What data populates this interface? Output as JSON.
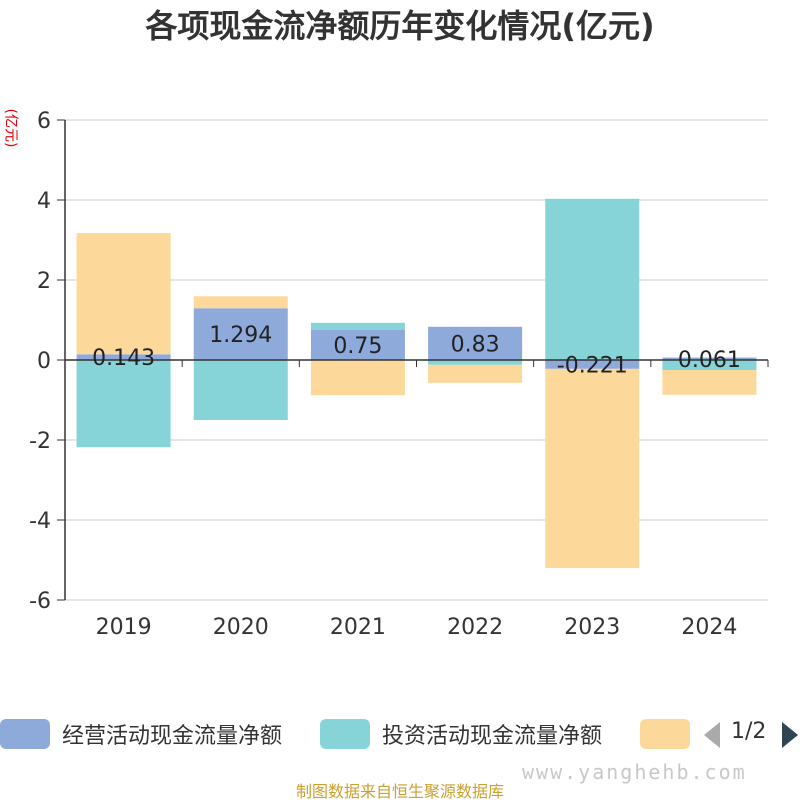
{
  "chart_data": {
    "type": "bar",
    "stacked": true,
    "title": "各项现金流净额历年变化情况(亿元)",
    "ylabel": "(亿元)",
    "xlabel": "",
    "categories": [
      "2019",
      "2020",
      "2021",
      "2022",
      "2023",
      "2024"
    ],
    "ylim": [
      -6,
      6
    ],
    "yticks": [
      "6",
      "4",
      "2",
      "0",
      "-2",
      "-4",
      "-6"
    ],
    "grid": true,
    "legend_position": "bottom",
    "series": [
      {
        "name": "经营活动现金流量净额",
        "color": "#8eaadb",
        "values": [
          0.143,
          1.294,
          0.75,
          0.83,
          -0.221,
          0.061
        ]
      },
      {
        "name": "投资活动现金流量净额",
        "color": "#86d4d8",
        "values": [
          -2.18,
          -1.5,
          0.18,
          -0.12,
          4.03,
          -0.25
        ]
      },
      {
        "name": "",
        "color": "#fdd89b",
        "values": [
          3.03,
          0.3,
          -0.88,
          -0.45,
          -4.98,
          -0.62
        ]
      }
    ],
    "data_labels": [
      "0.143",
      "1.294",
      "0.75",
      "0.83",
      "-0.221",
      "0.061"
    ]
  },
  "legend": {
    "pager": "1/2"
  },
  "watermark": "www.yanghehb.com",
  "source": "制图数据来自恒生聚源数据库"
}
